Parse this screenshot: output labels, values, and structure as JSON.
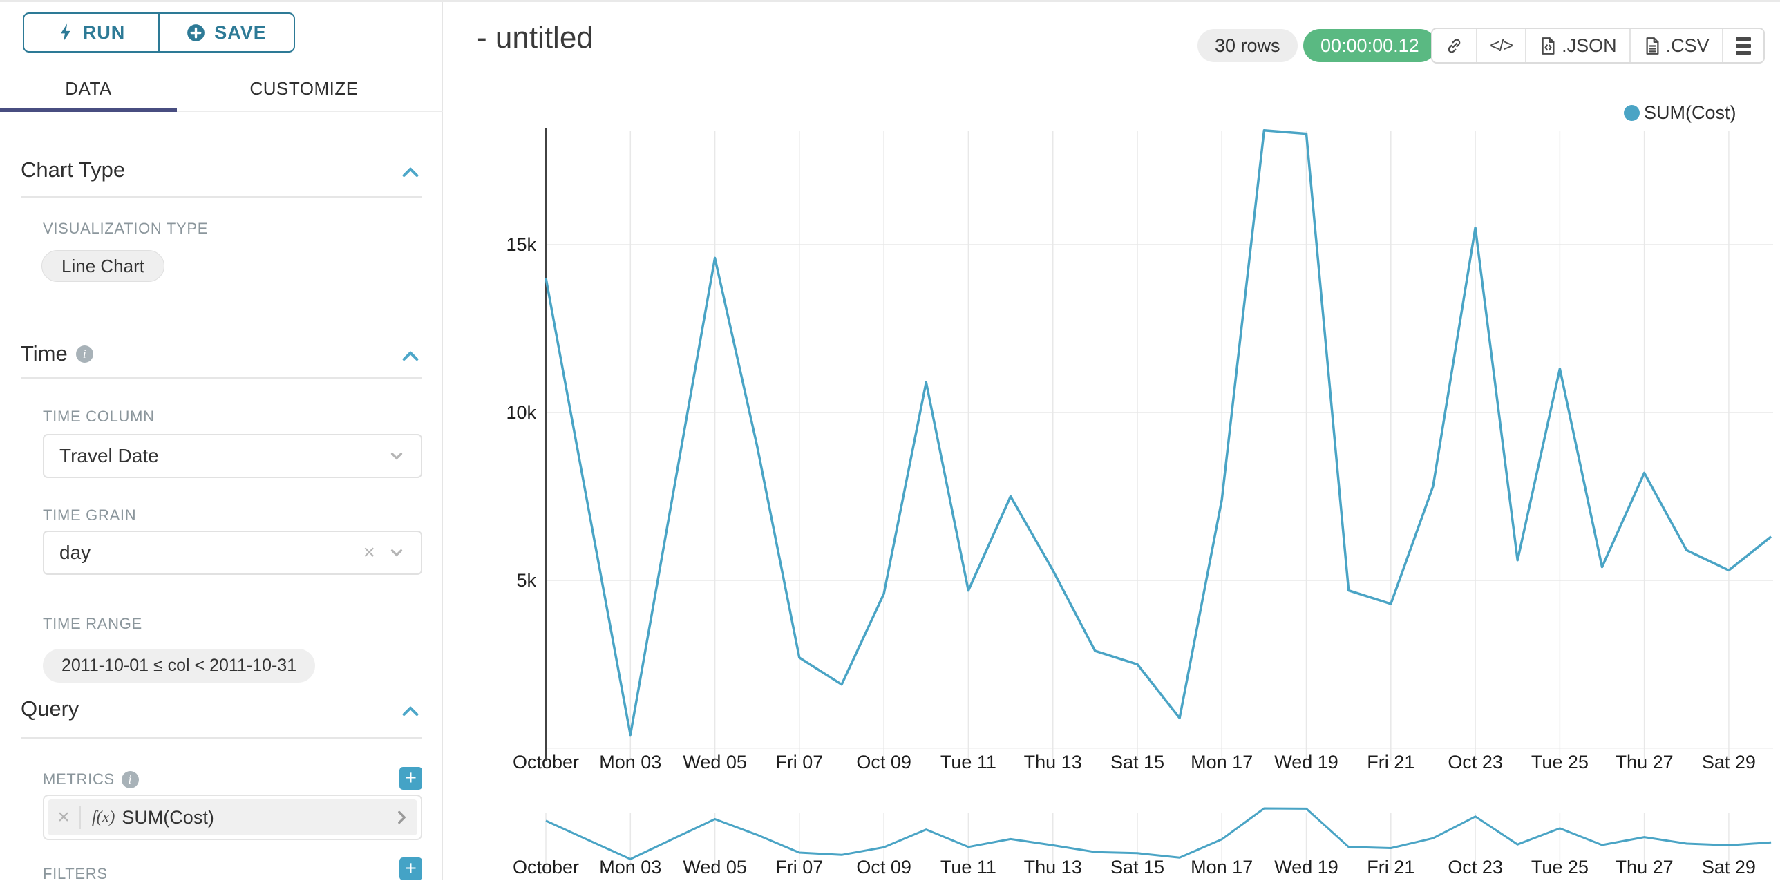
{
  "sidebar": {
    "run_label": "RUN",
    "save_label": "SAVE",
    "tabs": {
      "data": "DATA",
      "customize": "CUSTOMIZE"
    },
    "chart_type": {
      "title": "Chart Type",
      "viz_type_label": "VISUALIZATION TYPE",
      "viz_type_value": "Line Chart"
    },
    "time": {
      "title": "Time",
      "time_column_label": "TIME COLUMN",
      "time_column_value": "Travel Date",
      "time_grain_label": "TIME GRAIN",
      "time_grain_value": "day",
      "time_range_label": "TIME RANGE",
      "time_range_value": "2011-10-01 ≤ col < 2011-10-31"
    },
    "query": {
      "title": "Query",
      "metrics_label": "METRICS",
      "metric_fx": "f(x)",
      "metric_value": "SUM(Cost)",
      "filters_label": "FILTERS"
    }
  },
  "header": {
    "title": "- untitled",
    "rows_badge": "30 rows",
    "timer_badge": "00:00:00.12",
    "json_label": ".JSON",
    "csv_label": ".CSV"
  },
  "legend": {
    "label": "SUM(Cost)",
    "color": "#4aa4c5"
  },
  "glyphs": {
    "clear": "×",
    "plus": "+",
    "code": "</>"
  },
  "colors": {
    "accent_teal": "#2d7a96",
    "light_teal": "#44a3c6",
    "timer_green": "#5ab982",
    "tab_underline": "#484d80",
    "line": "#4aa4c5"
  },
  "icons": [
    "lightning-icon",
    "plus-circle-icon",
    "chevron-up-icon",
    "chevron-down-icon",
    "info-icon",
    "clear-icon",
    "chevron-right-icon",
    "link-icon",
    "code-icon",
    "json-file-icon",
    "csv-file-icon",
    "menu-icon",
    "legend-dot"
  ],
  "chart_data": {
    "type": "line",
    "title": "- untitled",
    "x": [
      "2011-10-01",
      "2011-10-02",
      "2011-10-03",
      "2011-10-04",
      "2011-10-05",
      "2011-10-06",
      "2011-10-07",
      "2011-10-08",
      "2011-10-09",
      "2011-10-10",
      "2011-10-11",
      "2011-10-12",
      "2011-10-13",
      "2011-10-14",
      "2011-10-15",
      "2011-10-16",
      "2011-10-17",
      "2011-10-18",
      "2011-10-19",
      "2011-10-20",
      "2011-10-21",
      "2011-10-22",
      "2011-10-23",
      "2011-10-24",
      "2011-10-25",
      "2011-10-26",
      "2011-10-27",
      "2011-10-28",
      "2011-10-29",
      "2011-10-30"
    ],
    "series": [
      {
        "name": "SUM(Cost)",
        "values": [
          14000,
          7200,
          400,
          7500,
          14600,
          9000,
          2700,
          1900,
          4600,
          10900,
          4700,
          7500,
          5300,
          2900,
          2500,
          900,
          7400,
          18400,
          18300,
          4700,
          4300,
          7800,
          15500,
          5600,
          11300,
          5400,
          8200,
          5900,
          5300,
          6300
        ]
      }
    ],
    "x_tick_labels": [
      "October",
      "Mon 03",
      "Wed 05",
      "Fri 07",
      "Oct 09",
      "Tue 11",
      "Thu 13",
      "Sat 15",
      "Mon 17",
      "Wed 19",
      "Fri 21",
      "Oct 23",
      "Tue 25",
      "Thu 27",
      "Sat 29"
    ],
    "y_ticks": [
      5000,
      10000,
      15000
    ],
    "y_tick_labels": [
      "5k",
      "10k",
      "15k"
    ],
    "ylim": [
      0,
      18400
    ],
    "grid": true,
    "legend_position": "top-right",
    "has_mini_context_chart": true,
    "rows": 30
  }
}
